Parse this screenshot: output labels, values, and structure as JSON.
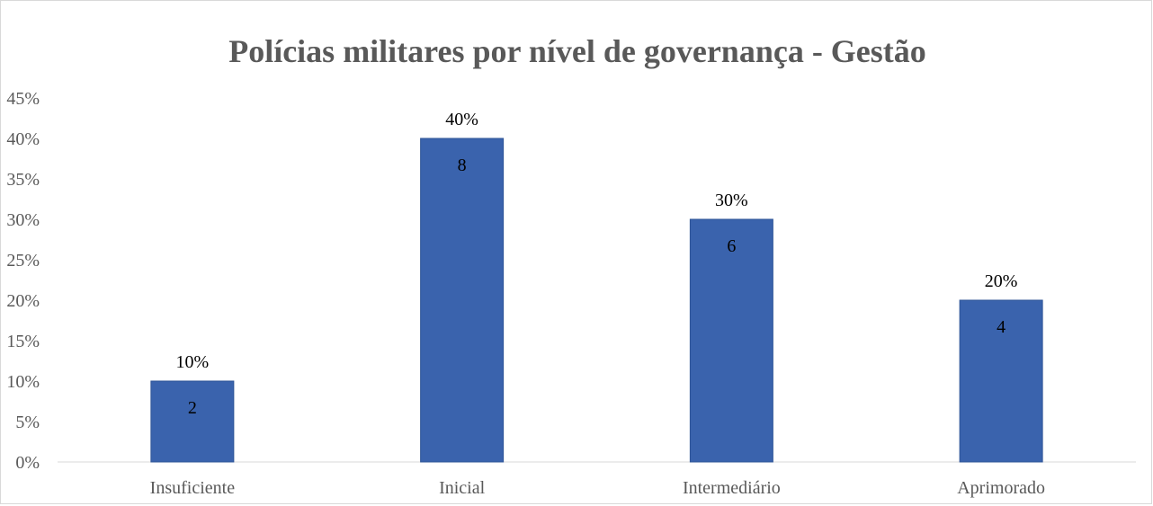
{
  "chart_data": {
    "type": "bar",
    "title": "Polícias militares por nível de governança - Gestão",
    "categories": [
      "Insuficiente",
      "Inicial",
      "Intermediário",
      "Aprimorado"
    ],
    "values": [
      10,
      40,
      30,
      20
    ],
    "value_labels": [
      "10%",
      "40%",
      "30%",
      "20%"
    ],
    "count_labels": [
      "2",
      "8",
      "6",
      "4"
    ],
    "y_ticks": [
      "0%",
      "5%",
      "10%",
      "15%",
      "20%",
      "25%",
      "30%",
      "35%",
      "40%",
      "45%"
    ],
    "ylim": [
      0,
      45
    ],
    "xlabel": "",
    "ylabel": "",
    "grid": false,
    "legend": "none",
    "colors": {
      "bar": "#3a63ad",
      "bar_border": "#2f5597",
      "text": "#000000",
      "axis_tick": "#595959",
      "axis_line": "#d9d9d9"
    }
  }
}
